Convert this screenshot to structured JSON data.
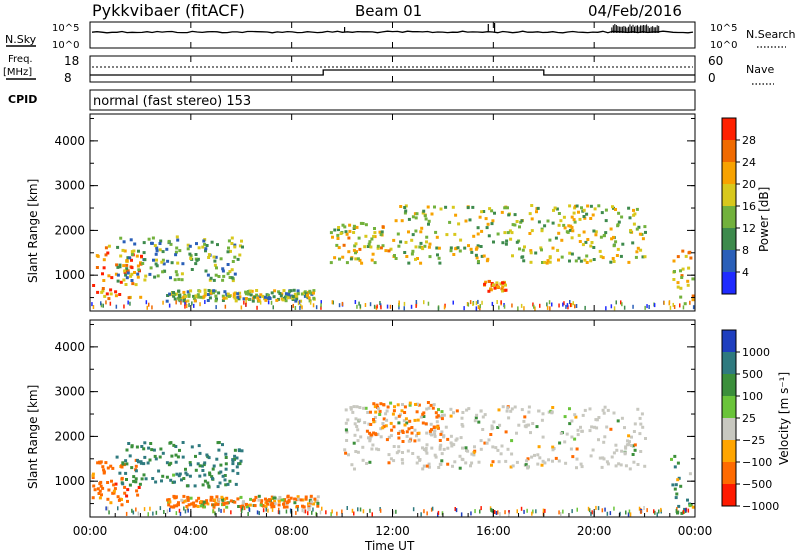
{
  "header": {
    "station": "Pykkvibaer (fitACF)",
    "beam": "Beam 01",
    "date": "04/Feb/2016"
  },
  "noise_panel": {
    "left_label": "N.Sky",
    "right_label": "N.Search",
    "left_ticks": [
      "10^5",
      "10^0"
    ],
    "right_ticks": [
      "10^5",
      "10^0"
    ]
  },
  "freq_panel": {
    "left_label_line1": "Freq.",
    "left_label_line2": "[MHz]",
    "right_label": "Nave",
    "left_ticks": [
      "18",
      "8"
    ],
    "right_ticks": [
      "60",
      "0"
    ],
    "steps": [
      {
        "from": "00:00",
        "to": "09:15",
        "level": "low"
      },
      {
        "from": "09:15",
        "to": "18:00",
        "level": "high"
      },
      {
        "from": "18:00",
        "to": "24:00",
        "level": "low"
      }
    ]
  },
  "cpid_panel": {
    "label": "CPID",
    "text": "normal (fast stereo) 153"
  },
  "chart_data": [
    {
      "type": "heatmap",
      "name": "power",
      "ylabel": "Slant Range [km]",
      "ylim": [
        200,
        4600
      ],
      "yticks": [
        "1000",
        "2000",
        "3000",
        "4000"
      ],
      "xlim": [
        "00:00",
        "24:00"
      ],
      "colorbar": {
        "label": "Power [dB]",
        "ticks": [
          "4",
          "8",
          "12",
          "16",
          "20",
          "24",
          "28"
        ],
        "colors": [
          "#1f2bff",
          "#2a5fb8",
          "#3d8a4c",
          "#72b13c",
          "#d8c81c",
          "#f7a200",
          "#f06a00",
          "#ff2000"
        ]
      },
      "echo_regions": [
        {
          "t_start": "00:00",
          "t_end": "02:00",
          "range_km": [
            500,
            1700
          ],
          "power_db": 24
        },
        {
          "t_start": "01:00",
          "t_end": "06:00",
          "range_km": [
            900,
            1900
          ],
          "power_db": 12
        },
        {
          "t_start": "03:00",
          "t_end": "09:00",
          "range_km": [
            450,
            700
          ],
          "power_db": 14
        },
        {
          "t_start": "09:30",
          "t_end": "12:00",
          "range_km": [
            1300,
            2200
          ],
          "power_db": 18
        },
        {
          "t_start": "12:00",
          "t_end": "22:00",
          "range_km": [
            1300,
            2600
          ],
          "power_db": 16
        },
        {
          "t_start": "15:30",
          "t_end": "16:30",
          "range_km": [
            650,
            900
          ],
          "power_db": 26
        },
        {
          "t_start": "23:00",
          "t_end": "24:00",
          "range_km": [
            300,
            1600
          ],
          "power_db": 20
        }
      ]
    },
    {
      "type": "heatmap",
      "name": "velocity",
      "ylabel": "Slant Range [km]",
      "xlabel": "Time UT",
      "ylim": [
        200,
        4600
      ],
      "yticks": [
        "1000",
        "2000",
        "3000",
        "4000"
      ],
      "xticks": [
        "00:00",
        "04:00",
        "08:00",
        "12:00",
        "16:00",
        "20:00",
        "00:00"
      ],
      "colorbar": {
        "label": "Velocity [m s⁻¹]",
        "ticks": [
          "1000",
          "500",
          "100",
          "25",
          "−25",
          "−100",
          "−500",
          "−1000"
        ],
        "colors": [
          "#1f3fbf",
          "#2f7a7f",
          "#3b8f3b",
          "#6ac43a",
          "#c8c8c0",
          "#ffa500",
          "#ff6a00",
          "#ff1a00"
        ]
      },
      "echo_regions": [
        {
          "t_start": "00:00",
          "t_end": "02:00",
          "range_km": [
            500,
            1500
          ],
          "velocity": -300
        },
        {
          "t_start": "01:00",
          "t_end": "06:00",
          "range_km": [
            900,
            1900
          ],
          "velocity": 300
        },
        {
          "t_start": "03:00",
          "t_end": "09:00",
          "range_km": [
            450,
            700
          ],
          "velocity": -150
        },
        {
          "t_start": "10:00",
          "t_end": "22:00",
          "range_km": [
            1300,
            2700
          ],
          "velocity": 0
        },
        {
          "t_start": "11:00",
          "t_end": "14:00",
          "range_km": [
            1900,
            2800
          ],
          "velocity": -200
        },
        {
          "t_start": "23:00",
          "t_end": "24:00",
          "range_km": [
            300,
            1600
          ],
          "velocity": 200
        }
      ]
    }
  ]
}
